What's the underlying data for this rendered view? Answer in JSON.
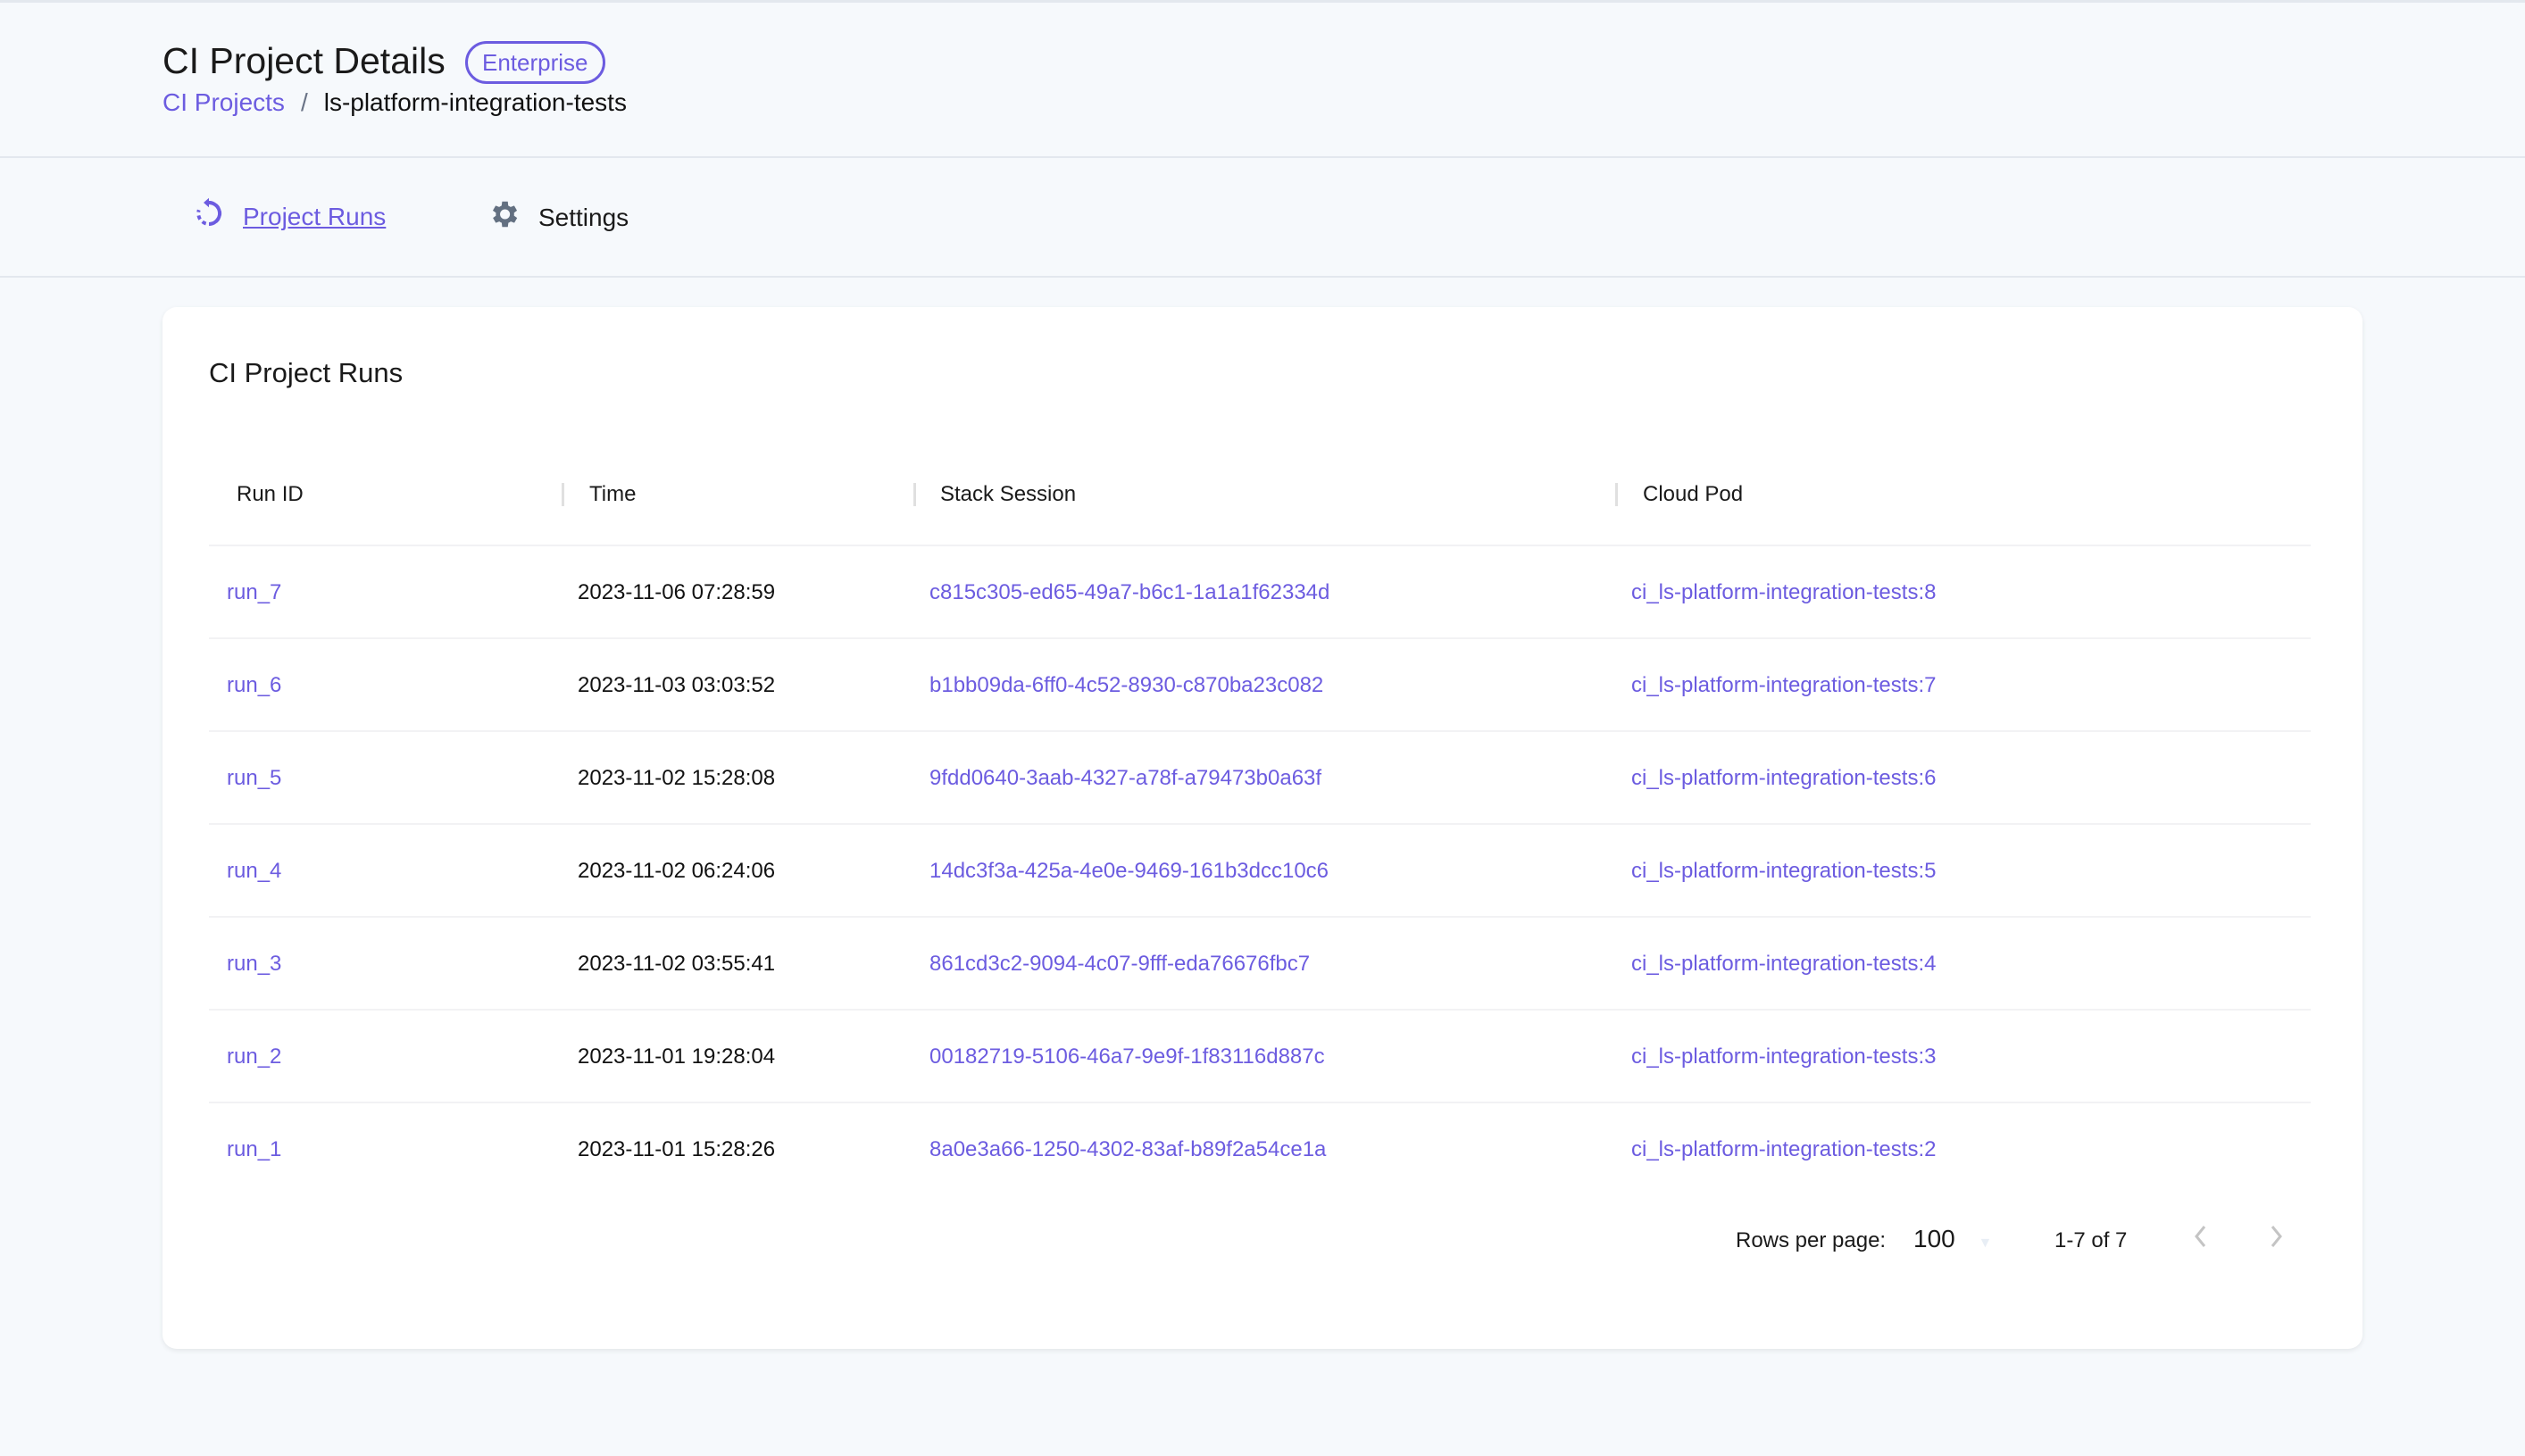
{
  "header": {
    "title": "CI Project Details",
    "badge": "Enterprise",
    "breadcrumb": {
      "parent": "CI Projects",
      "separator": "/",
      "current": "ls-platform-integration-tests"
    }
  },
  "tabs": [
    {
      "label": "Project Runs",
      "icon": "history-icon",
      "active": true
    },
    {
      "label": "Settings",
      "icon": "gear-icon",
      "active": false
    }
  ],
  "card": {
    "title": "CI Project Runs",
    "columns": [
      "Run ID",
      "Time",
      "Stack Session",
      "Cloud Pod"
    ],
    "rows": [
      {
        "run_id": "run_7",
        "time": "2023-11-06 07:28:59",
        "session": "c815c305-ed65-49a7-b6c1-1a1a1f62334d",
        "pod": "ci_ls-platform-integration-tests:8"
      },
      {
        "run_id": "run_6",
        "time": "2023-11-03 03:03:52",
        "session": "b1bb09da-6ff0-4c52-8930-c870ba23c082",
        "pod": "ci_ls-platform-integration-tests:7"
      },
      {
        "run_id": "run_5",
        "time": "2023-11-02 15:28:08",
        "session": "9fdd0640-3aab-4327-a78f-a79473b0a63f",
        "pod": "ci_ls-platform-integration-tests:6"
      },
      {
        "run_id": "run_4",
        "time": "2023-11-02 06:24:06",
        "session": "14dc3f3a-425a-4e0e-9469-161b3dcc10c6",
        "pod": "ci_ls-platform-integration-tests:5"
      },
      {
        "run_id": "run_3",
        "time": "2023-11-02 03:55:41",
        "session": "861cd3c2-9094-4c07-9fff-eda76676fbc7",
        "pod": "ci_ls-platform-integration-tests:4"
      },
      {
        "run_id": "run_2",
        "time": "2023-11-01 19:28:04",
        "session": "00182719-5106-46a7-9e9f-1f83116d887c",
        "pod": "ci_ls-platform-integration-tests:3"
      },
      {
        "run_id": "run_1",
        "time": "2023-11-01 15:28:26",
        "session": "8a0e3a66-1250-4302-83af-b89f2a54ce1a",
        "pod": "ci_ls-platform-integration-tests:2"
      }
    ],
    "pagination": {
      "rows_per_page_label": "Rows per page:",
      "rows_per_page": "100",
      "range": "1-7 of 7"
    }
  },
  "colors": {
    "accent": "#6c5ce0",
    "background": "#f6f9fc"
  }
}
